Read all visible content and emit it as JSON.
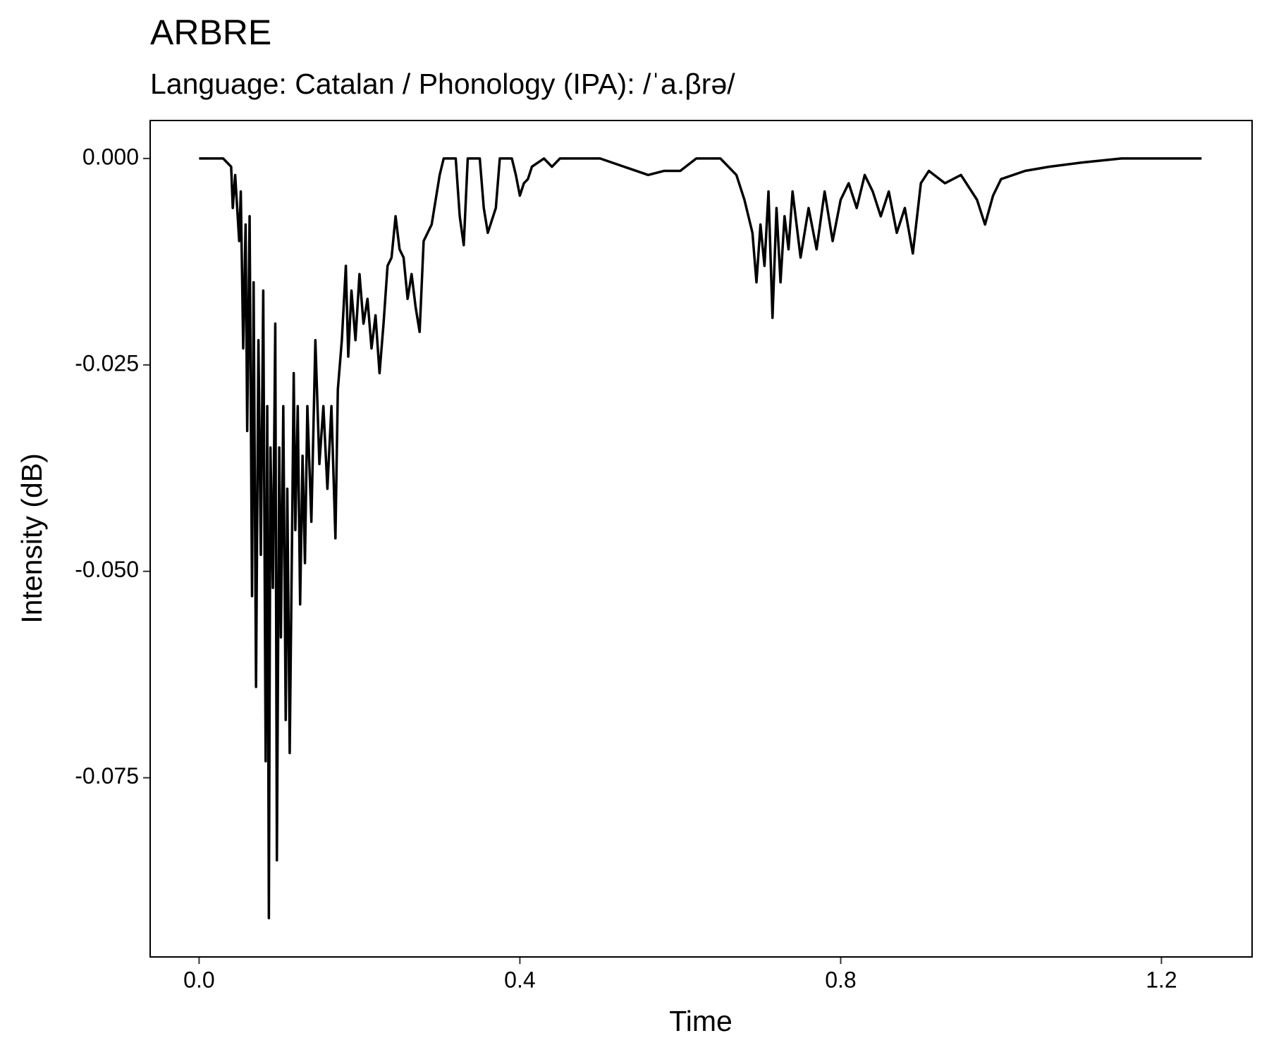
{
  "chart_data": {
    "type": "line",
    "title": "ARBRE",
    "subtitle": "Language: Catalan / Phonology (IPA): /ˈa.βrə/",
    "x_label": "Time",
    "y_label": "Intensity (dB)",
    "xlim": [
      -0.061,
      1.313
    ],
    "ylim": [
      -0.0967,
      0.0046
    ],
    "xticks": [
      {
        "value": 0,
        "label": "0.0"
      },
      0.4,
      0.8,
      1.2
    ],
    "yticks": [
      {
        "value": 0,
        "label": "0.000"
      },
      {
        "value": -0.025,
        "label": "-0.025"
      },
      {
        "value": -0.05,
        "label": "-0.050"
      },
      {
        "value": -0.075,
        "label": "-0.075"
      }
    ],
    "color": "#000000",
    "x": [
      0,
      0.03,
      0.04,
      0.042,
      0.045,
      0.05,
      0.052,
      0.055,
      0.058,
      0.06,
      0.063,
      0.066,
      0.068,
      0.071,
      0.074,
      0.077,
      0.08,
      0.083,
      0.085,
      0.087,
      0.089,
      0.092,
      0.095,
      0.097,
      0.1,
      0.102,
      0.105,
      0.108,
      0.11,
      0.113,
      0.116,
      0.118,
      0.12,
      0.123,
      0.126,
      0.129,
      0.132,
      0.135,
      0.14,
      0.145,
      0.15,
      0.155,
      0.16,
      0.165,
      0.17,
      0.173,
      0.178,
      0.183,
      0.186,
      0.19,
      0.195,
      0.2,
      0.205,
      0.21,
      0.215,
      0.22,
      0.225,
      0.23,
      0.235,
      0.24,
      0.245,
      0.25,
      0.255,
      0.26,
      0.265,
      0.27,
      0.275,
      0.28,
      0.29,
      0.3,
      0.305,
      0.32,
      0.325,
      0.33,
      0.335,
      0.35,
      0.355,
      0.36,
      0.37,
      0.375,
      0.39,
      0.395,
      0.4,
      0.405,
      0.41,
      0.415,
      0.43,
      0.44,
      0.45,
      0.5,
      0.53,
      0.56,
      0.58,
      0.6,
      0.62,
      0.65,
      0.67,
      0.68,
      0.69,
      0.695,
      0.7,
      0.705,
      0.71,
      0.715,
      0.72,
      0.725,
      0.73,
      0.735,
      0.74,
      0.75,
      0.76,
      0.77,
      0.78,
      0.79,
      0.8,
      0.81,
      0.82,
      0.83,
      0.84,
      0.85,
      0.86,
      0.87,
      0.88,
      0.89,
      0.9,
      0.91,
      0.93,
      0.95,
      0.97,
      0.98,
      0.99,
      1.0,
      1.03,
      1.06,
      1.1,
      1.15,
      1.25
    ],
    "values": [
      0,
      0,
      -0.001,
      -0.006,
      -0.002,
      -0.01,
      -0.004,
      -0.023,
      -0.008,
      -0.033,
      -0.007,
      -0.053,
      -0.015,
      -0.064,
      -0.022,
      -0.048,
      -0.016,
      -0.073,
      -0.03,
      -0.092,
      -0.035,
      -0.052,
      -0.02,
      -0.085,
      -0.035,
      -0.058,
      -0.03,
      -0.068,
      -0.04,
      -0.072,
      -0.045,
      -0.026,
      -0.045,
      -0.03,
      -0.054,
      -0.036,
      -0.049,
      -0.03,
      -0.044,
      -0.022,
      -0.037,
      -0.03,
      -0.04,
      -0.03,
      -0.046,
      -0.028,
      -0.022,
      -0.013,
      -0.024,
      -0.016,
      -0.022,
      -0.014,
      -0.02,
      -0.017,
      -0.023,
      -0.019,
      -0.026,
      -0.02,
      -0.013,
      -0.012,
      -0.007,
      -0.011,
      -0.012,
      -0.017,
      -0.014,
      -0.018,
      -0.021,
      -0.01,
      -0.008,
      -0.002,
      0,
      0,
      -0.007,
      -0.0105,
      0,
      0,
      -0.006,
      -0.009,
      -0.006,
      0,
      0,
      -0.002,
      -0.0045,
      -0.003,
      -0.0025,
      -0.001,
      0,
      -0.001,
      0,
      0,
      -0.001,
      -0.002,
      -0.0015,
      -0.0015,
      0,
      0,
      -0.002,
      -0.005,
      -0.009,
      -0.015,
      -0.008,
      -0.013,
      -0.004,
      -0.0193,
      -0.006,
      -0.015,
      -0.007,
      -0.011,
      -0.004,
      -0.012,
      -0.006,
      -0.011,
      -0.004,
      -0.01,
      -0.005,
      -0.003,
      -0.006,
      -0.002,
      -0.004,
      -0.007,
      -0.004,
      -0.009,
      -0.006,
      -0.0115,
      -0.003,
      -0.0015,
      -0.003,
      -0.002,
      -0.005,
      -0.008,
      -0.0045,
      -0.0025,
      -0.0015,
      -0.001,
      -0.0005,
      0,
      0
    ]
  }
}
